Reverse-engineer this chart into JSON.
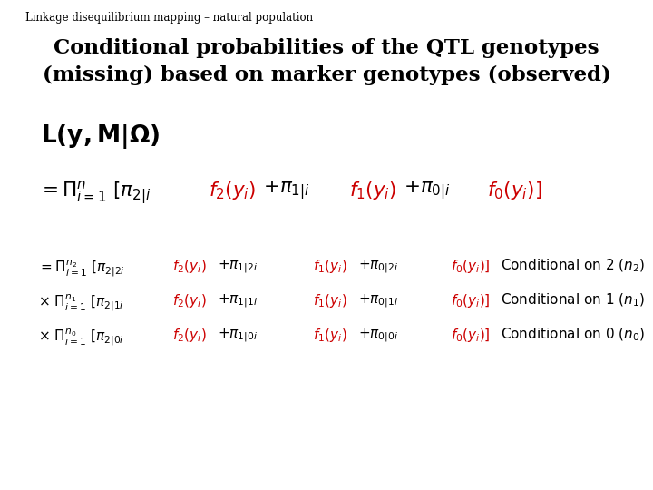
{
  "background_color": "#ffffff",
  "header_text": "Linkage disequilibrium mapping – natural population",
  "header_color": "#000000",
  "header_fontsize": 8.5,
  "title_line1": "Conditional probabilities of the QTL genotypes",
  "title_line2": "(missing) based on marker genotypes (observed)",
  "title_fontsize": 16.5,
  "body_color": "#000000",
  "red_color": "#cc0000"
}
